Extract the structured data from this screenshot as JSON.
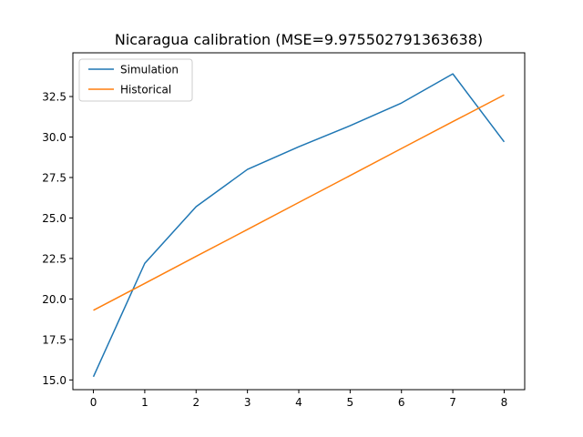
{
  "chart_data": {
    "type": "line",
    "title": "Nicaragua calibration (MSE=9.975502791363638)",
    "xlabel": "",
    "ylabel": "",
    "x": [
      0,
      1,
      2,
      3,
      4,
      5,
      6,
      7,
      8
    ],
    "xlim": [
      -0.4,
      8.4
    ],
    "ylim": [
      14.4,
      35.2
    ],
    "xticks": [
      "0",
      "1",
      "2",
      "3",
      "4",
      "5",
      "6",
      "7",
      "8"
    ],
    "yticks": [
      "15.0",
      "17.5",
      "20.0",
      "22.5",
      "25.0",
      "27.5",
      "30.0",
      "32.5"
    ],
    "grid": false,
    "legend_position": "upper-left",
    "series": [
      {
        "name": "Simulation",
        "color": "#1f77b4",
        "values": [
          15.2,
          22.2,
          25.7,
          28.0,
          29.4,
          30.7,
          32.1,
          33.9,
          29.7
        ]
      },
      {
        "name": "Historical",
        "color": "#ff7f0e",
        "values": [
          19.3,
          20.96,
          22.63,
          24.29,
          25.96,
          27.62,
          29.29,
          30.95,
          32.6
        ]
      }
    ]
  }
}
